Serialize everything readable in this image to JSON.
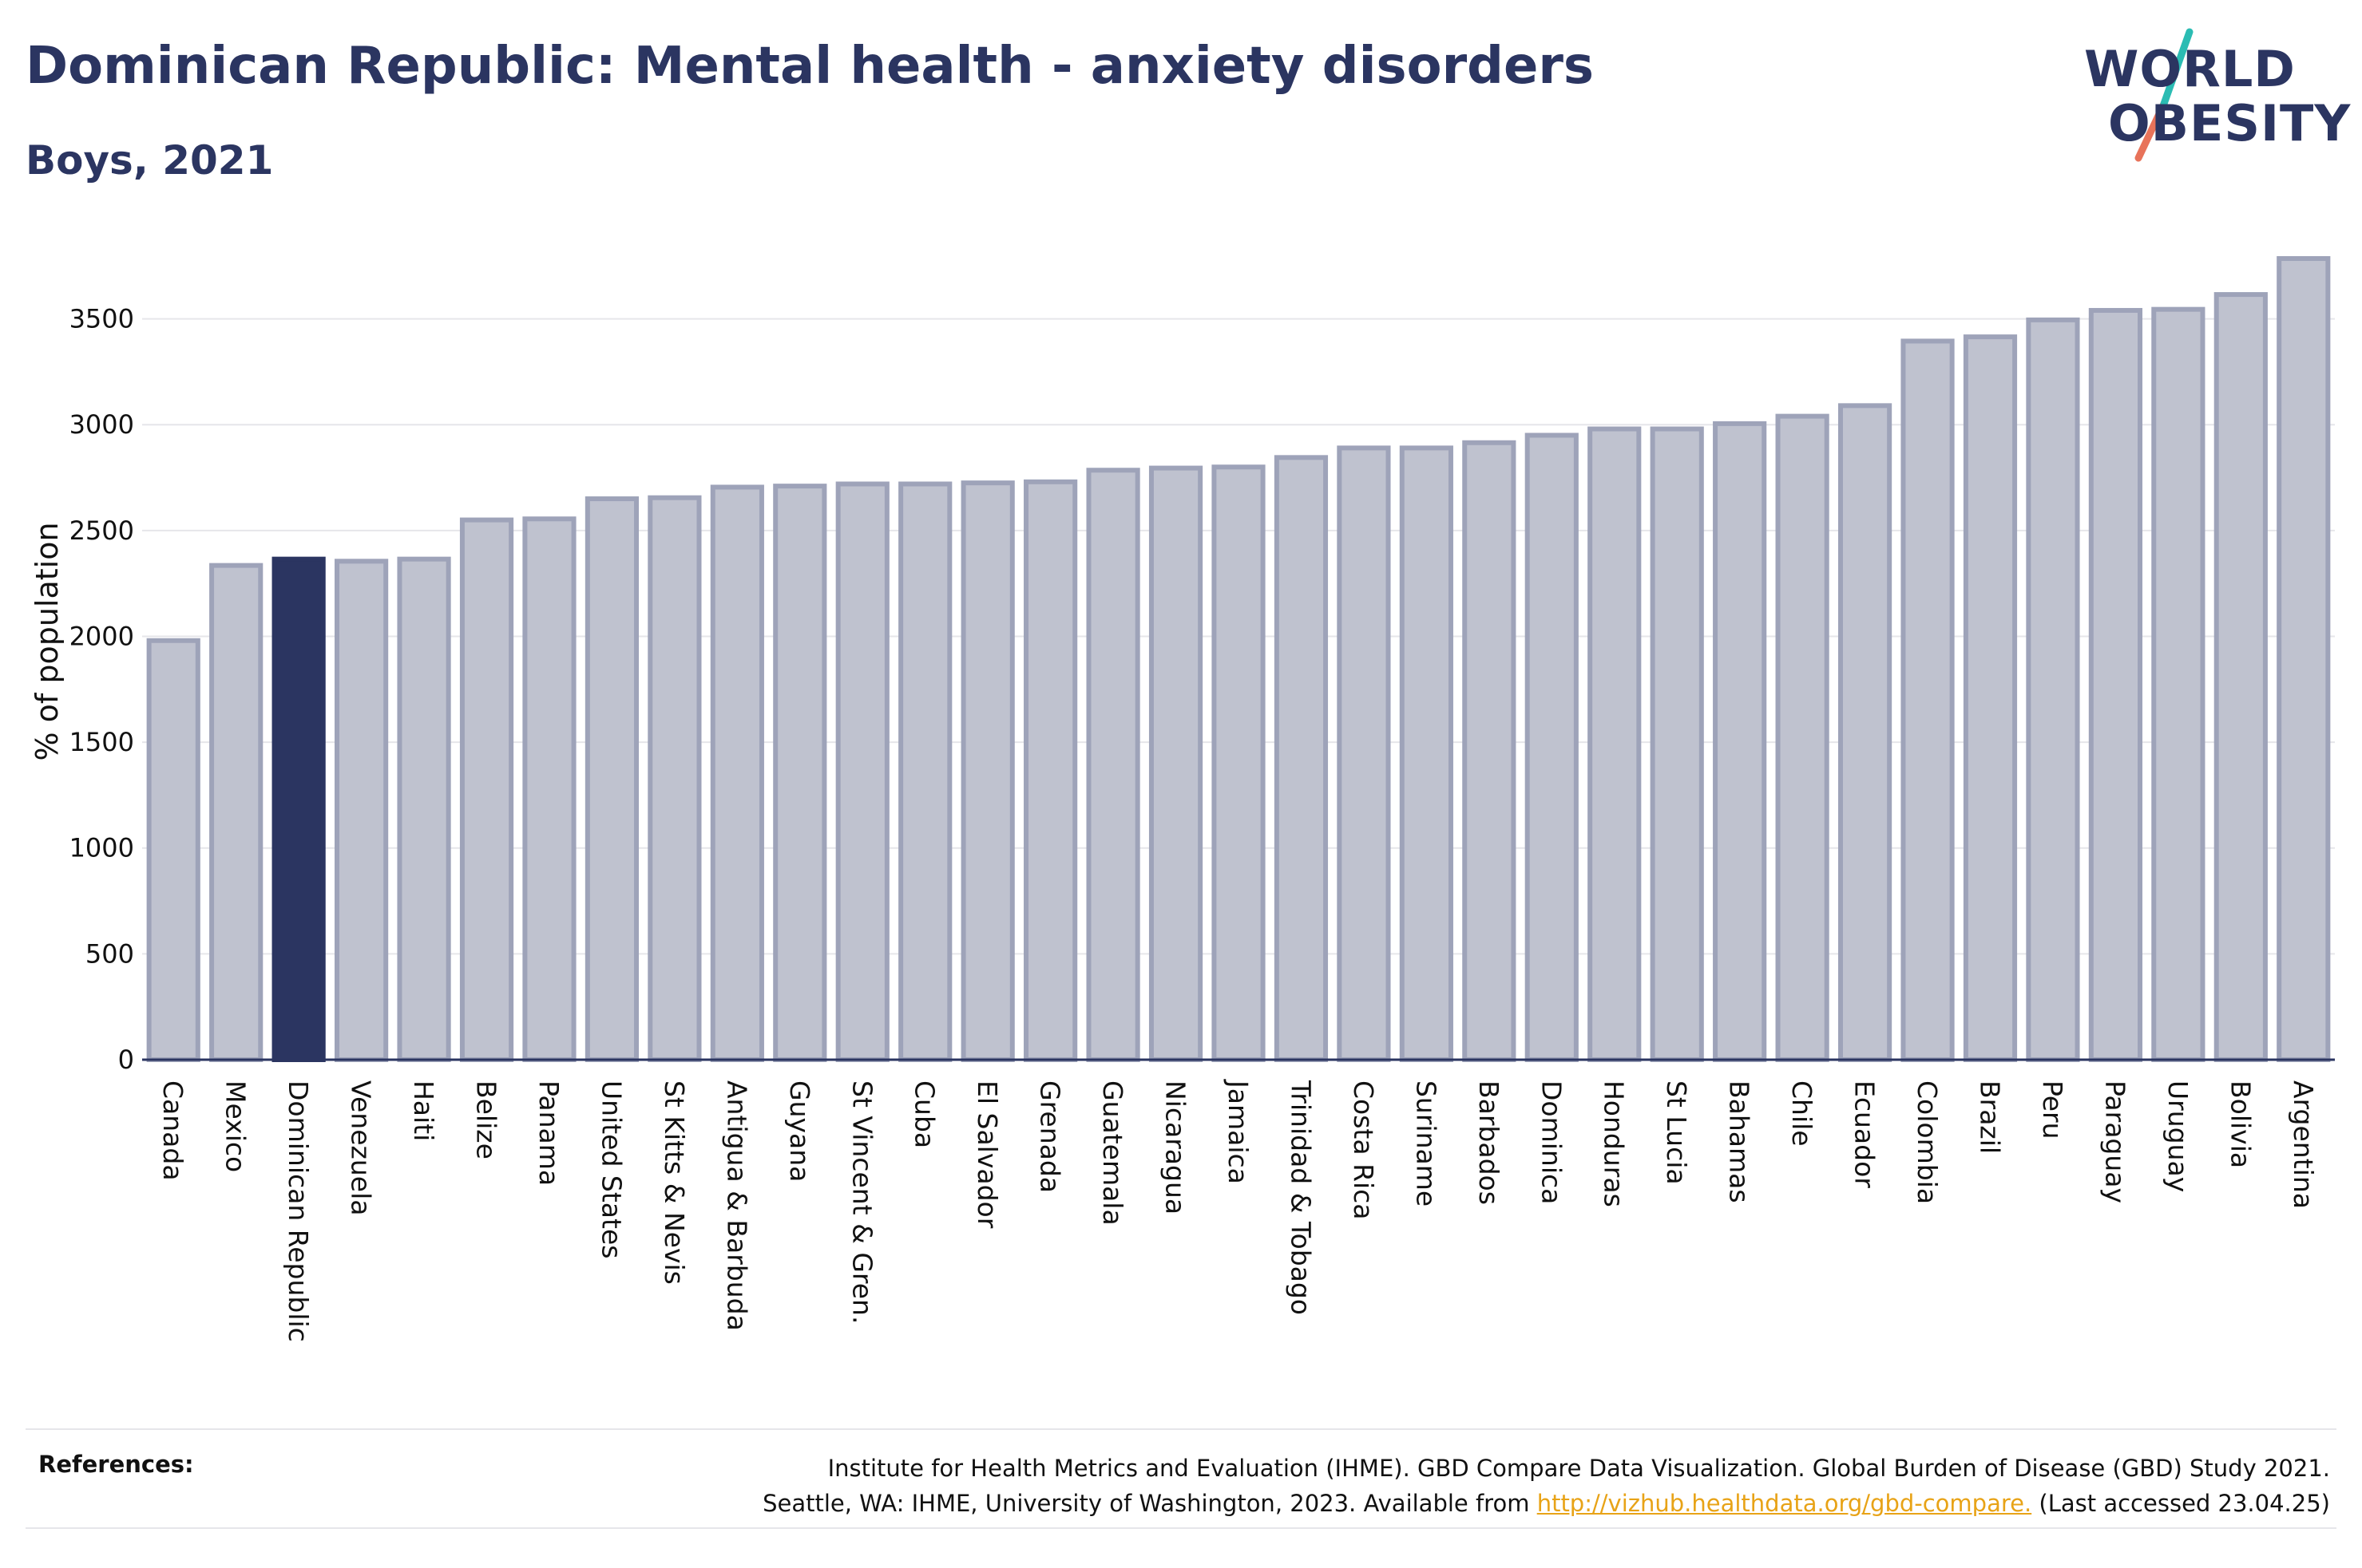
{
  "header": {
    "title": "Dominican Republic: Mental health - anxiety disorders",
    "subtitle": "Boys, 2021"
  },
  "logo": {
    "line1": "WORLD",
    "line2": "OBESITY",
    "text_color": "#2b3561",
    "accent_teal": "#2bbcb3",
    "accent_coral": "#e8735a"
  },
  "colors": {
    "bar_fill": "#bfc2cf",
    "bar_stroke": "#9ea3b9",
    "highlight_fill": "#2b3561",
    "axis": "#2b3561",
    "grid": "#e6e6ea"
  },
  "chart_data": {
    "type": "bar",
    "title": "Dominican Republic: Mental health - anxiety disorders",
    "subtitle": "Boys, 2021",
    "xlabel": "",
    "ylabel": "% of population",
    "ylim": [
      0,
      3800
    ],
    "yticks": [
      0,
      500,
      1000,
      1500,
      2000,
      2500,
      3000,
      3500
    ],
    "grid": true,
    "highlight": "Dominican Republic",
    "categories": [
      "Canada",
      "Mexico",
      "Dominican Republic",
      "Venezuela",
      "Haiti",
      "Belize",
      "Panama",
      "United States",
      "St Kitts & Nevis",
      "Antigua & Barbuda",
      "Guyana",
      "St Vincent & Gren.",
      "Cuba",
      "El Salvador",
      "Grenada",
      "Guatemala",
      "Nicaragua",
      "Jamaica",
      "Trinidad & Tobago",
      "Costa Rica",
      "Suriname",
      "Barbados",
      "Dominica",
      "Honduras",
      "St Lucia",
      "Bahamas",
      "Chile",
      "Ecuador",
      "Colombia",
      "Brazil",
      "Peru",
      "Paraguay",
      "Uruguay",
      "Bolivia",
      "Argentina"
    ],
    "values": [
      1980,
      2335,
      2365,
      2355,
      2365,
      2550,
      2555,
      2650,
      2655,
      2705,
      2710,
      2720,
      2720,
      2725,
      2730,
      2785,
      2795,
      2800,
      2845,
      2890,
      2890,
      2915,
      2950,
      2980,
      2980,
      3005,
      3040,
      3090,
      3395,
      3415,
      3495,
      3540,
      3545,
      3615,
      3785
    ]
  },
  "references": {
    "label": "References:",
    "line1": "Institute for Health Metrics and Evaluation (IHME). GBD Compare Data Visualization. Global Burden of Disease (GBD) Study 2021.",
    "line2_prefix": "Seattle, WA: IHME, University of Washington, 2023. Available from ",
    "link_text": "http://vizhub.healthdata.org/gbd-compare.",
    "line2_suffix": " (Last accessed 23.04.25)",
    "link_color": "#e8a317"
  }
}
